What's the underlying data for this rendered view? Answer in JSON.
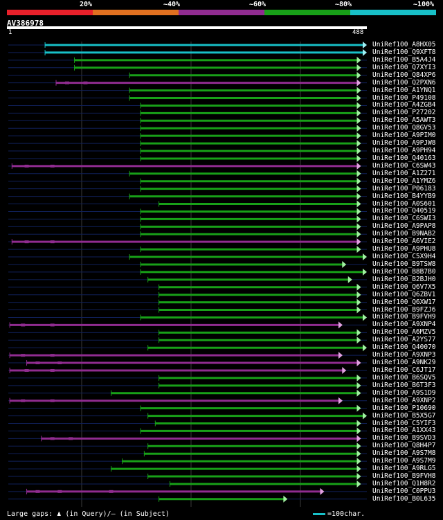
{
  "legend": {
    "labels": [
      "20%",
      "~40%",
      "~60%",
      "~80%",
      "~100%"
    ],
    "colors": [
      "#e8202a",
      "#e07020",
      "#902c90",
      "#18a018",
      "#18c0c8"
    ]
  },
  "query": {
    "name": "AV386978",
    "start": "1",
    "end": "488",
    "length": 488
  },
  "hits": [
    {
      "name": "UniRef100_A8HX05",
      "start": 50,
      "end": 488,
      "color": "#18c0c8",
      "gaps": []
    },
    {
      "name": "UniRef100_Q9XFT8",
      "start": 50,
      "end": 488,
      "color": "#18c0c8",
      "gaps": []
    },
    {
      "name": "UniRef100_B5A4J4",
      "start": 90,
      "end": 480,
      "color": "#18a018",
      "gaps": []
    },
    {
      "name": "UniRef100_Q7XYI3",
      "start": 90,
      "end": 480,
      "color": "#18a018",
      "gaps": []
    },
    {
      "name": "UniRef100_Q84XP6",
      "start": 165,
      "end": 480,
      "color": "#18a018",
      "gaps": []
    },
    {
      "name": "UniRef100_Q2PXN6",
      "start": 65,
      "end": 480,
      "color": "#902c90",
      "gaps": [
        80,
        105
      ]
    },
    {
      "name": "UniRef100_A1YNQ1",
      "start": 165,
      "end": 480,
      "color": "#18a018",
      "gaps": []
    },
    {
      "name": "UniRef100_P49108",
      "start": 165,
      "end": 480,
      "color": "#18a018",
      "gaps": []
    },
    {
      "name": "UniRef100_A4ZGB4",
      "start": 180,
      "end": 480,
      "color": "#18a018",
      "gaps": []
    },
    {
      "name": "UniRef100_P27202",
      "start": 180,
      "end": 480,
      "color": "#18a018",
      "gaps": []
    },
    {
      "name": "UniRef100_A5AWT3",
      "start": 180,
      "end": 480,
      "color": "#18a018",
      "gaps": []
    },
    {
      "name": "UniRef100_Q8GV53",
      "start": 180,
      "end": 480,
      "color": "#18a018",
      "gaps": []
    },
    {
      "name": "UniRef100_A9PIM0",
      "start": 180,
      "end": 480,
      "color": "#18a018",
      "gaps": []
    },
    {
      "name": "UniRef100_A9PJW8",
      "start": 180,
      "end": 480,
      "color": "#18a018",
      "gaps": []
    },
    {
      "name": "UniRef100_A9PH94",
      "start": 180,
      "end": 480,
      "color": "#18a018",
      "gaps": []
    },
    {
      "name": "UniRef100_Q40163",
      "start": 180,
      "end": 480,
      "color": "#18a018",
      "gaps": []
    },
    {
      "name": "UniRef100_C6SW43",
      "start": 5,
      "end": 480,
      "color": "#902c90",
      "gaps": [
        25,
        60
      ]
    },
    {
      "name": "UniRef100_A1Z271",
      "start": 165,
      "end": 480,
      "color": "#18a018",
      "gaps": []
    },
    {
      "name": "UniRef100_A1YMZ6",
      "start": 180,
      "end": 480,
      "color": "#18a018",
      "gaps": []
    },
    {
      "name": "UniRef100_P06183",
      "start": 180,
      "end": 480,
      "color": "#18a018",
      "gaps": []
    },
    {
      "name": "UniRef100_B4YYB9",
      "start": 165,
      "end": 480,
      "color": "#18a018",
      "gaps": []
    },
    {
      "name": "UniRef100_A0S601",
      "start": 205,
      "end": 480,
      "color": "#18a018",
      "gaps": []
    },
    {
      "name": "UniRef100_Q40519",
      "start": 180,
      "end": 480,
      "color": "#18a018",
      "gaps": []
    },
    {
      "name": "UniRef100_C6SWI3",
      "start": 180,
      "end": 480,
      "color": "#18a018",
      "gaps": []
    },
    {
      "name": "UniRef100_A9PAP8",
      "start": 180,
      "end": 480,
      "color": "#18a018",
      "gaps": []
    },
    {
      "name": "UniRef100_B9NAB2",
      "start": 180,
      "end": 480,
      "color": "#18a018",
      "gaps": []
    },
    {
      "name": "UniRef100_A6VIE2",
      "start": 5,
      "end": 480,
      "color": "#902c90",
      "gaps": [
        25,
        60
      ]
    },
    {
      "name": "UniRef100_A9PHU8",
      "start": 180,
      "end": 480,
      "color": "#18a018",
      "gaps": []
    },
    {
      "name": "UniRef100_C5X9H4",
      "start": 165,
      "end": 488,
      "color": "#18a018",
      "gaps": []
    },
    {
      "name": "UniRef100_B9TSW8",
      "start": 180,
      "end": 460,
      "color": "#18a018",
      "gaps": []
    },
    {
      "name": "UniRef100_B8B7B0",
      "start": 180,
      "end": 488,
      "color": "#18a018",
      "gaps": []
    },
    {
      "name": "UniRef100_B2BJH0",
      "start": 190,
      "end": 468,
      "color": "#18a018",
      "gaps": []
    },
    {
      "name": "UniRef100_Q6V7X5",
      "start": 205,
      "end": 480,
      "color": "#18a018",
      "gaps": []
    },
    {
      "name": "UniRef100_Q6ZBV1",
      "start": 205,
      "end": 480,
      "color": "#18a018",
      "gaps": []
    },
    {
      "name": "UniRef100_Q6XW17",
      "start": 205,
      "end": 480,
      "color": "#18a018",
      "gaps": []
    },
    {
      "name": "UniRef100_B9FZJ6",
      "start": 205,
      "end": 480,
      "color": "#18a018",
      "gaps": []
    },
    {
      "name": "UniRef100_B9FVH9",
      "start": 180,
      "end": 488,
      "color": "#18a018",
      "gaps": []
    },
    {
      "name": "UniRef100_A9XNP4",
      "start": 2,
      "end": 455,
      "color": "#902c90",
      "gaps": [
        20,
        60
      ]
    },
    {
      "name": "UniRef100_A6MZV5",
      "start": 205,
      "end": 480,
      "color": "#18a018",
      "gaps": []
    },
    {
      "name": "UniRef100_A2YS77",
      "start": 205,
      "end": 480,
      "color": "#18a018",
      "gaps": []
    },
    {
      "name": "UniRef100_Q40070",
      "start": 190,
      "end": 488,
      "color": "#18a018",
      "gaps": []
    },
    {
      "name": "UniRef100_A9XNP3",
      "start": 2,
      "end": 455,
      "color": "#902c90",
      "gaps": [
        20,
        60
      ]
    },
    {
      "name": "UniRef100_A9NK29",
      "start": 25,
      "end": 480,
      "color": "#902c90",
      "gaps": [
        40,
        70
      ]
    },
    {
      "name": "UniRef100_C6JT17",
      "start": 2,
      "end": 460,
      "color": "#902c90",
      "gaps": [
        25,
        60
      ]
    },
    {
      "name": "UniRef100_B6SQV5",
      "start": 205,
      "end": 480,
      "color": "#18a018",
      "gaps": []
    },
    {
      "name": "UniRef100_B6T3F3",
      "start": 205,
      "end": 480,
      "color": "#18a018",
      "gaps": []
    },
    {
      "name": "UniRef100_A9S1D9",
      "start": 140,
      "end": 480,
      "color": "#18a018",
      "gaps": []
    },
    {
      "name": "UniRef100_A9XNP2",
      "start": 2,
      "end": 455,
      "color": "#902c90",
      "gaps": [
        20,
        60
      ]
    },
    {
      "name": "UniRef100_P10690",
      "start": 180,
      "end": 480,
      "color": "#18a018",
      "gaps": []
    },
    {
      "name": "UniRef100_B5X5G7",
      "start": 190,
      "end": 488,
      "color": "#18a018",
      "gaps": []
    },
    {
      "name": "UniRef100_C5YIF3",
      "start": 200,
      "end": 480,
      "color": "#18a018",
      "gaps": []
    },
    {
      "name": "UniRef100_A1XX43",
      "start": 180,
      "end": 480,
      "color": "#18a018",
      "gaps": []
    },
    {
      "name": "UniRef100_B9SVD3",
      "start": 45,
      "end": 480,
      "color": "#902c90",
      "gaps": [
        60,
        85
      ]
    },
    {
      "name": "UniRef100_Q8H4P7",
      "start": 190,
      "end": 480,
      "color": "#18a018",
      "gaps": []
    },
    {
      "name": "UniRef100_A9S7M8",
      "start": 185,
      "end": 480,
      "color": "#18a018",
      "gaps": []
    },
    {
      "name": "UniRef100_A9S7M9",
      "start": 155,
      "end": 480,
      "color": "#18a018",
      "gaps": []
    },
    {
      "name": "UniRef100_A9RLG5",
      "start": 140,
      "end": 480,
      "color": "#18a018",
      "gaps": []
    },
    {
      "name": "UniRef100_B9FVH8",
      "start": 190,
      "end": 480,
      "color": "#18a018",
      "gaps": []
    },
    {
      "name": "UniRef100_Q1H8R2",
      "start": 220,
      "end": 480,
      "color": "#18a018",
      "gaps": []
    },
    {
      "name": "UniRef100_C0PPU3",
      "start": 25,
      "end": 430,
      "color": "#902c90",
      "gaps": [
        40,
        70,
        140
      ]
    },
    {
      "name": "UniRef100_B0L635",
      "start": 205,
      "end": 380,
      "color": "#18a018",
      "gaps": []
    }
  ],
  "footer": {
    "gap_label": "Large gaps:",
    "gap_symbol": "♟",
    "gap_query": "(in Query)/",
    "gap_subject_symbol": "–",
    "gap_subject": " (in Subject)",
    "scale_label": "=100char."
  }
}
